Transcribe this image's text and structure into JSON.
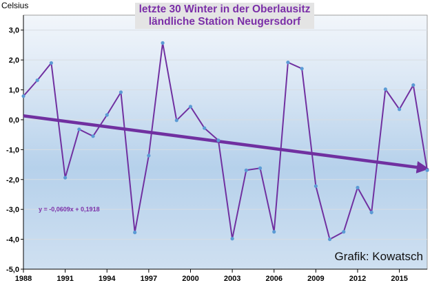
{
  "chart_data": {
    "type": "line",
    "title": [
      "letzte 30 Winter in der Oberlausitz",
      "ländliche Station Neugersdorf"
    ],
    "ylabel": "Celsius",
    "xlabel": "",
    "credit": "Grafik: Kowatsch",
    "x": [
      1988,
      1989,
      1990,
      1991,
      1992,
      1993,
      1994,
      1995,
      1996,
      1997,
      1998,
      1999,
      2000,
      2001,
      2002,
      2003,
      2004,
      2005,
      2006,
      2007,
      2008,
      2009,
      2010,
      2011,
      2012,
      2013,
      2014,
      2015,
      2016,
      2017
    ],
    "values": [
      0.79,
      1.32,
      1.9,
      -1.94,
      -0.32,
      -0.55,
      0.16,
      0.92,
      -3.77,
      -1.2,
      2.57,
      -0.02,
      0.44,
      -0.28,
      -0.69,
      -3.98,
      -1.69,
      -1.62,
      -3.75,
      1.92,
      1.71,
      -2.22,
      -4.0,
      -3.75,
      -2.27,
      -3.1,
      1.02,
      0.35,
      1.16,
      -1.69
    ],
    "trend": {
      "slope": -0.0609,
      "intercept": 0.1918,
      "equation": "y = -0,0609x + 0,1918"
    },
    "xticks": [
      "1988",
      "1991",
      "1994",
      "1997",
      "2000",
      "2003",
      "2006",
      "2009",
      "2012",
      "2015"
    ],
    "xtick_values": [
      1988,
      1991,
      1994,
      1997,
      2000,
      2003,
      2006,
      2009,
      2012,
      2015
    ],
    "yticks": [
      "3,0",
      "2,0",
      "1,0",
      "0,0",
      "-1,0",
      "-2,0",
      "-3,0",
      "-4,0",
      "-5,0"
    ],
    "ytick_values": [
      3,
      2,
      1,
      0,
      -1,
      -2,
      -3,
      -4,
      -5
    ],
    "xlim": [
      1988,
      2017
    ],
    "ylim": [
      -5,
      3.5
    ],
    "grid": true,
    "colors": {
      "line": "#7030a0",
      "point": "#5b9bd5",
      "trend": "#7030a0"
    }
  }
}
